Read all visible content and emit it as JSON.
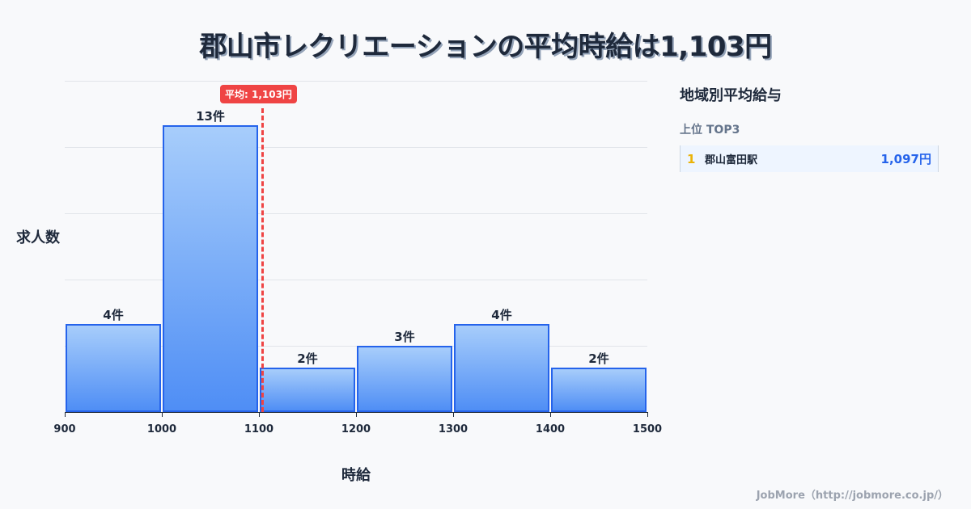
{
  "title": "郡山市レクリエーションの平均時給は1,103円",
  "chart_data": {
    "type": "bar",
    "title": "郡山市レクリエーションの平均時給は1,103円",
    "xlabel": "時給",
    "ylabel": "求人数",
    "bins": [
      [
        900,
        1000
      ],
      [
        1000,
        1100
      ],
      [
        1100,
        1200
      ],
      [
        1200,
        1300
      ],
      [
        1300,
        1400
      ],
      [
        1400,
        1500
      ]
    ],
    "categories": [
      "900-1000",
      "1000-1100",
      "1100-1200",
      "1200-1300",
      "1300-1400",
      "1400-1500"
    ],
    "values": [
      4,
      13,
      2,
      3,
      4,
      2
    ],
    "value_labels": [
      "4件",
      "13件",
      "2件",
      "3件",
      "4件",
      "2件"
    ],
    "x_ticks": [
      "900",
      "1000",
      "1100",
      "1200",
      "1300",
      "1400",
      "1500"
    ],
    "xlim": [
      900,
      1500
    ],
    "ylim": [
      0,
      15
    ],
    "grid": true,
    "annotations": [
      {
        "type": "vline",
        "x": 1103,
        "label": "平均: 1,103円",
        "color": "#ef4444",
        "style": "dashed"
      }
    ],
    "bar_color": "#4f8ef5",
    "bar_edge_color": "#2563eb"
  },
  "chart": {
    "mean_label": "平均: 1,103円",
    "xlabel": "時給",
    "ylabel": "求人数"
  },
  "panel": {
    "title": "地域別平均給与",
    "subtitle": "上位 TOP3",
    "ranks": [
      {
        "rank": "1",
        "name": "郡山富田駅",
        "value": "1,097円"
      }
    ]
  },
  "footer": "JobMore（http://jobmore.co.jp/）"
}
